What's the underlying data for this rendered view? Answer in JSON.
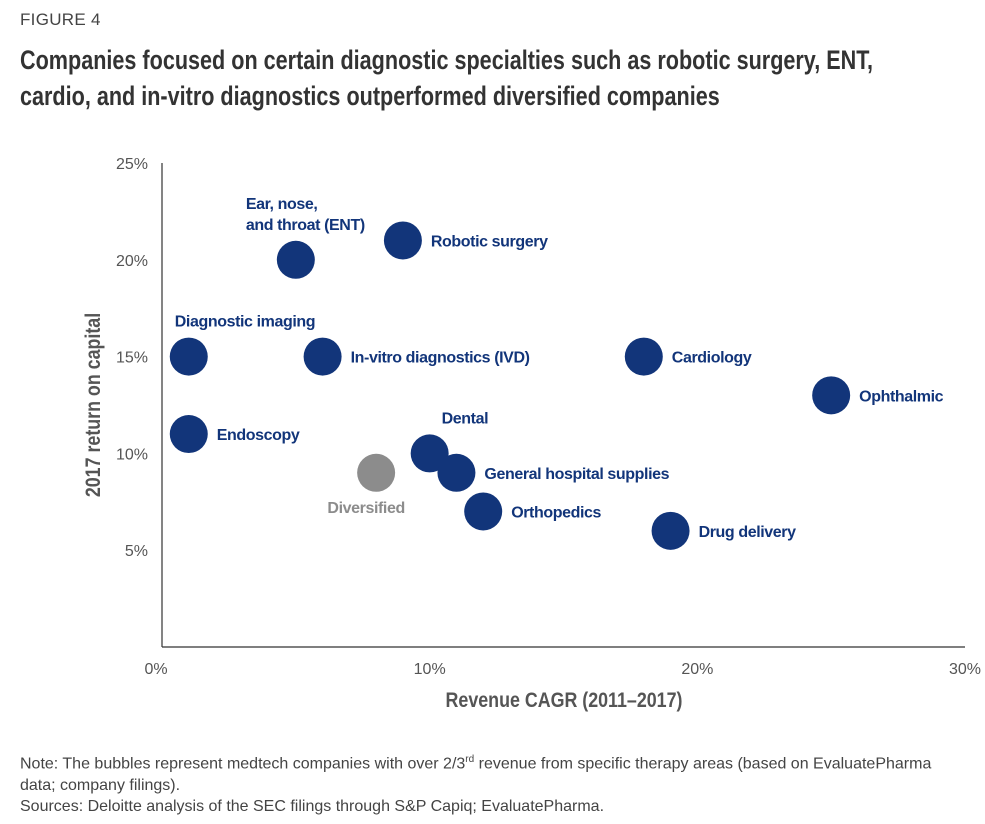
{
  "figure_label": "FIGURE 4",
  "chart_data": {
    "type": "scatter",
    "title": "Companies focused on certain diagnostic specialties such as robotic surgery, ENT, cardio, and in-vitro diagnostics outperformed diversified companies",
    "xlabel": "Revenue CAGR (2011–2017)",
    "ylabel": "2017 return on capital",
    "xlim": [
      0,
      30
    ],
    "ylim": [
      0,
      25
    ],
    "x_ticks": [
      {
        "v": 0,
        "label": "0%"
      },
      {
        "v": 10,
        "label": "10%"
      },
      {
        "v": 20,
        "label": "20%"
      },
      {
        "v": 30,
        "label": "30%"
      }
    ],
    "y_ticks": [
      {
        "v": 5,
        "label": "5%"
      },
      {
        "v": 10,
        "label": "10%"
      },
      {
        "v": 15,
        "label": "15%"
      },
      {
        "v": 20,
        "label": "20%"
      },
      {
        "v": 25,
        "label": "25%"
      }
    ],
    "grid": false,
    "colors": {
      "specialty": "#12357a",
      "diversified": "#8c8c8c"
    },
    "points": [
      {
        "label": "Diagnostic imaging",
        "x": 1,
        "y": 15,
        "group": "specialty",
        "label_position": "above"
      },
      {
        "label": "Endoscopy",
        "x": 1,
        "y": 11,
        "group": "specialty",
        "label_position": "right"
      },
      {
        "label": "Ear, nose, and throat (ENT)",
        "lines": [
          "Ear, nose,",
          "and throat (ENT)"
        ],
        "x": 5,
        "y": 20,
        "group": "specialty",
        "label_position": "above"
      },
      {
        "label": "Robotic surgery",
        "x": 9,
        "y": 21,
        "group": "specialty",
        "label_position": "right"
      },
      {
        "label": "In-vitro diagnostics (IVD)",
        "x": 6,
        "y": 15,
        "group": "specialty",
        "label_position": "right"
      },
      {
        "label": "Diversified",
        "x": 8,
        "y": 9,
        "group": "diversified",
        "label_position": "below"
      },
      {
        "label": "Dental",
        "x": 10,
        "y": 10,
        "group": "specialty",
        "label_position": "above"
      },
      {
        "label": "General hospital supplies",
        "x": 11,
        "y": 9,
        "group": "specialty",
        "label_position": "right"
      },
      {
        "label": "Orthopedics",
        "x": 12,
        "y": 7,
        "group": "specialty",
        "label_position": "right"
      },
      {
        "label": "Cardiology",
        "x": 18,
        "y": 15,
        "group": "specialty",
        "label_position": "right"
      },
      {
        "label": "Drug delivery",
        "x": 19,
        "y": 6,
        "group": "specialty",
        "label_position": "right"
      },
      {
        "label": "Ophthalmic",
        "x": 25,
        "y": 13,
        "group": "specialty",
        "label_position": "right"
      }
    ]
  },
  "note": {
    "prefix": "Note: The bubbles represent medtech companies with over 2/3",
    "sup": "rd",
    "suffix": " revenue from specific therapy areas (based on EvaluatePharma data; company filings)."
  },
  "sources": "Sources: Deloitte analysis of the SEC filings through S&P Capiq; EvaluatePharma."
}
